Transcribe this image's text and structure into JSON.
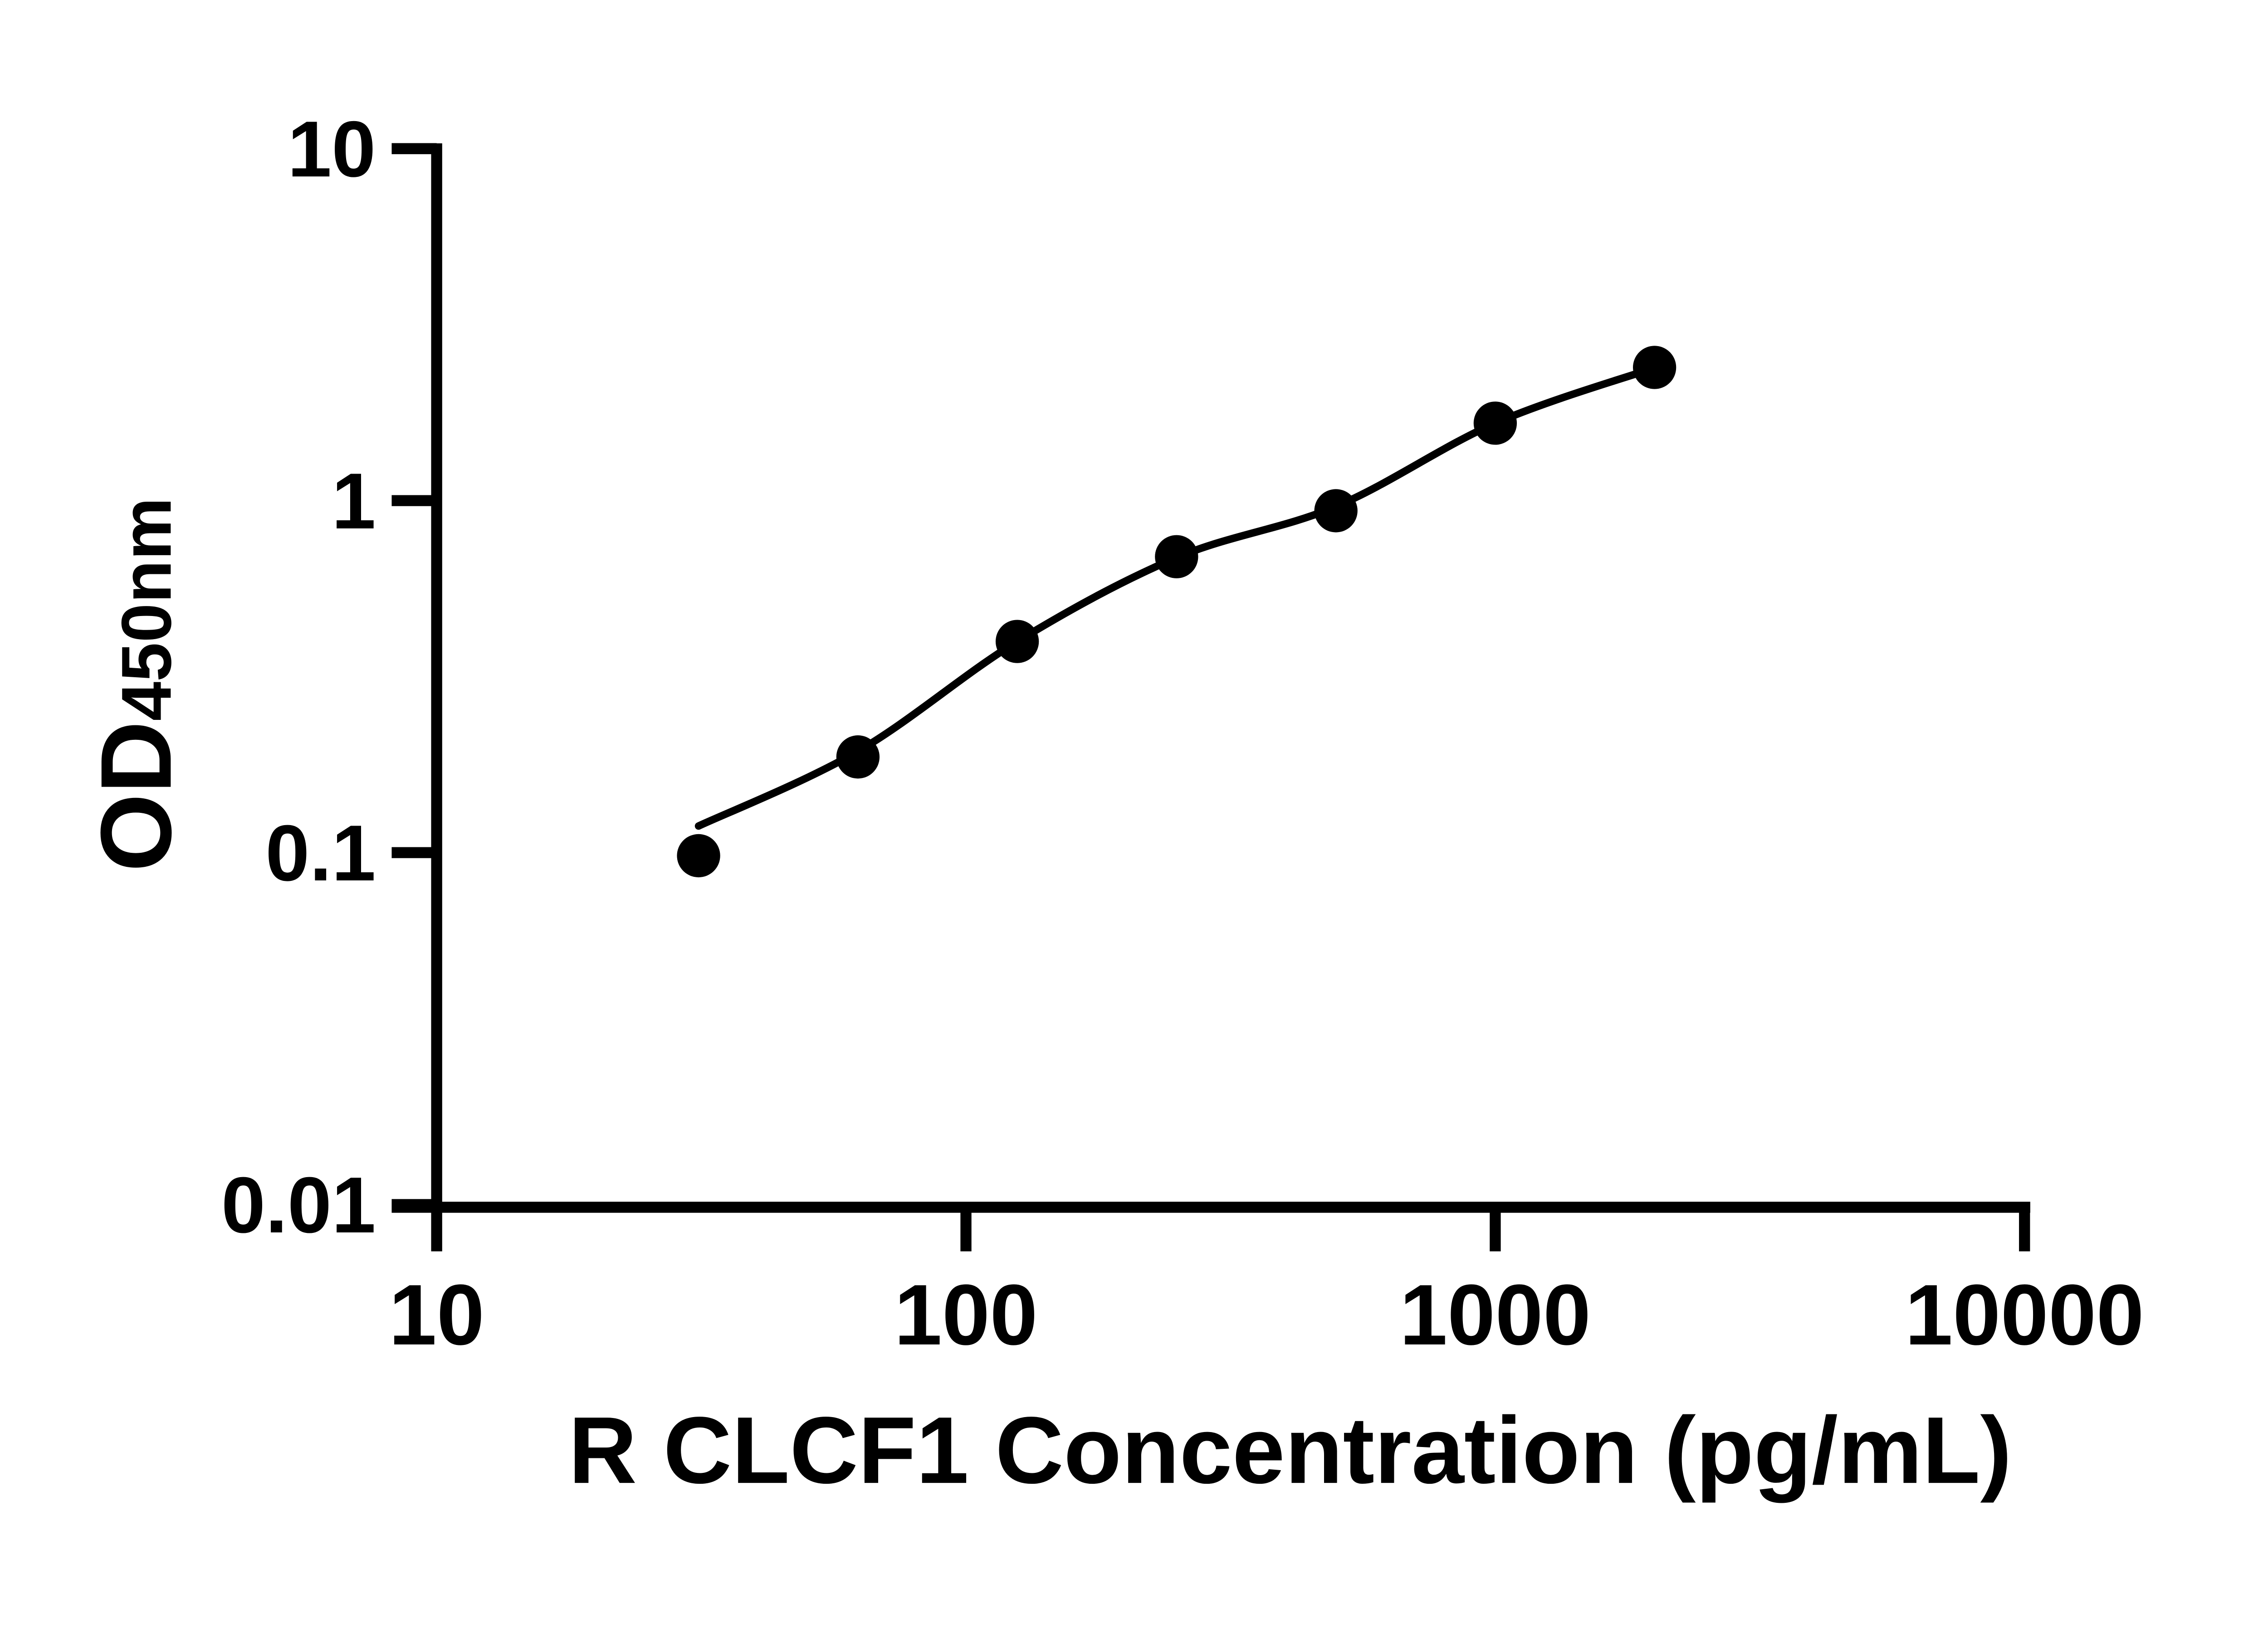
{
  "figure": {
    "background": "#ffffff",
    "ink": "#000000"
  },
  "chart_data": {
    "type": "scatter",
    "title": "",
    "xlabel": "R CLCF1 Concentration (pg/mL)",
    "ylabel": "OD450nm",
    "ylabel_main": "OD",
    "ylabel_sub": "450nm",
    "x_scale": "log10",
    "y_scale": "log10",
    "xlim": [
      10,
      10000
    ],
    "ylim": [
      0.01,
      10
    ],
    "grid": false,
    "legend_position": "none",
    "x_ticks": [
      {
        "value": 10,
        "label": "10"
      },
      {
        "value": 100,
        "label": "100"
      },
      {
        "value": 1000,
        "label": "1000"
      },
      {
        "value": 10000,
        "label": "10000"
      }
    ],
    "y_ticks": [
      {
        "value": 10,
        "label": "10"
      },
      {
        "value": 1,
        "label": "1"
      },
      {
        "value": 0.1,
        "label": "0.1"
      },
      {
        "value": 0.01,
        "label": "0.01"
      }
    ],
    "series": [
      {
        "name": "standard-data-points",
        "kind": "scatter",
        "marker": "filled-circle",
        "x": [
          31.25,
          62.5,
          125,
          250,
          500,
          1000,
          2000
        ],
        "y": [
          0.098,
          0.187,
          0.398,
          0.693,
          0.936,
          1.66,
          2.39
        ]
      },
      {
        "name": "fitted-standard-curve",
        "kind": "line",
        "x": [
          31.25,
          62.5,
          125,
          250,
          500,
          1000,
          2000
        ],
        "y": [
          0.119,
          0.194,
          0.398,
          0.689,
          0.962,
          1.66,
          2.385
        ]
      }
    ],
    "colors": {
      "points": "#000000",
      "curve": "#000000",
      "axis": "#000000"
    }
  }
}
